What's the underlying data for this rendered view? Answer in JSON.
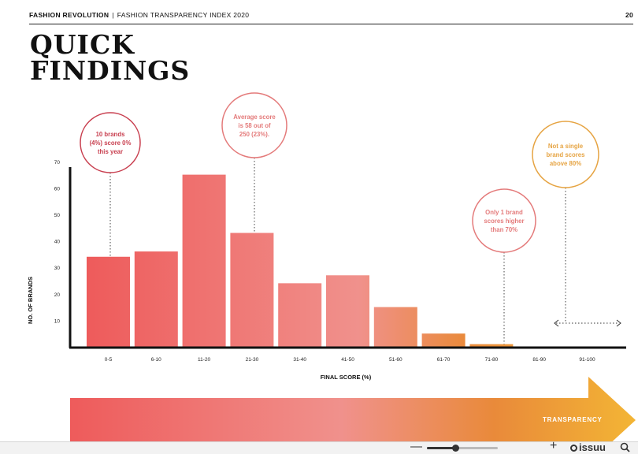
{
  "header": {
    "publisher": "FASHION REVOLUTION",
    "separator": "|",
    "report": "FASHION TRANSPARENCY INDEX 2020",
    "page_number": "20"
  },
  "title_lines": [
    "QUICK",
    "FINDINGS"
  ],
  "colors": {
    "bar_gradient": [
      "#ee5b5b",
      "#f0918c",
      "#e98a3a",
      "#f2b63b"
    ],
    "callout_red": "#c83f4f",
    "callout_pink": "#e47b7b",
    "callout_orange": "#e6a443"
  },
  "chart_data": {
    "type": "bar",
    "categories": [
      "0-5",
      "6-10",
      "11-20",
      "21-30",
      "31-40",
      "41-50",
      "51-60",
      "61-70",
      "71-80",
      "81-90",
      "91-100"
    ],
    "values": [
      34,
      36,
      65,
      43,
      24,
      27,
      15,
      5,
      1,
      0,
      0
    ],
    "xlabel": "FINAL SCORE (%)",
    "ylabel": "NO. OF BRANDS",
    "yticks": [
      10,
      20,
      30,
      40,
      50,
      60,
      70
    ],
    "ylim": [
      0,
      70
    ],
    "grid": false,
    "legend": "none",
    "annotations": [
      {
        "text_lines": [
          "10 brands",
          "(4%) score 0%",
          "this year"
        ],
        "category": "0-5",
        "color": "#c83f4f"
      },
      {
        "text_lines": [
          "Average score",
          "is 58 out of",
          "250 (23%)."
        ],
        "category": "21-30",
        "color": "#e47b7b"
      },
      {
        "text_lines": [
          "Only 1 brand",
          "scores higher",
          "than 70%"
        ],
        "category": "71-80",
        "color": "#e47b7b"
      },
      {
        "text_lines": [
          "Not a single",
          "brand scores",
          "above 80%"
        ],
        "category": "81-90",
        "color": "#e6a443"
      }
    ]
  },
  "transparency_label": "TRANSPARENCY",
  "viewer": {
    "brand": "issuu",
    "zoom_level": 0.4,
    "zoom_out_symbol": "—",
    "zoom_in_symbol": "+"
  }
}
